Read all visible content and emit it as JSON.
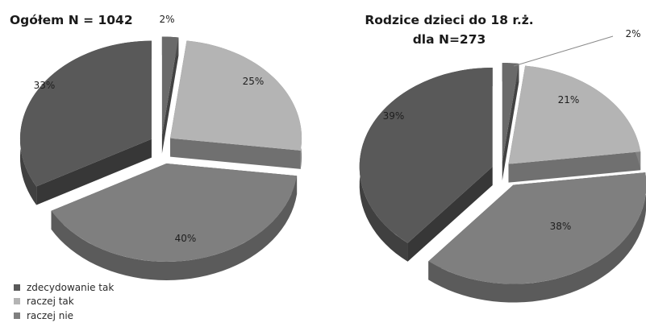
{
  "colors": {
    "zdecydowanie_tak": "#595959",
    "raczej_tak": "#b4b4b4",
    "raczej_nie": "#7f7f7f",
    "small_slice": "#6a6a6a"
  },
  "legend": {
    "items": [
      "zdecydowanie tak",
      "raczej tak",
      "raczej nie"
    ]
  },
  "chart_data": [
    {
      "type": "pie",
      "title": "Ogółem N = 1042",
      "slices": [
        {
          "name": "",
          "value": 2,
          "label": "2%"
        },
        {
          "name": "raczej tak",
          "value": 25,
          "label": "25%"
        },
        {
          "name": "raczej nie",
          "value": 40,
          "label": "40%"
        },
        {
          "name": "zdecydowanie tak",
          "value": 33,
          "label": "33%"
        }
      ]
    },
    {
      "type": "pie",
      "title_lines": [
        "Rodzice dzieci do 18 r.ż.",
        "dla N=273"
      ],
      "slices": [
        {
          "name": "",
          "value": 2,
          "label": "2%"
        },
        {
          "name": "raczej tak",
          "value": 21,
          "label": "21%"
        },
        {
          "name": "raczej nie",
          "value": 38,
          "label": "38%"
        },
        {
          "name": "zdecydowanie tak",
          "value": 39,
          "label": "39%"
        }
      ]
    }
  ]
}
